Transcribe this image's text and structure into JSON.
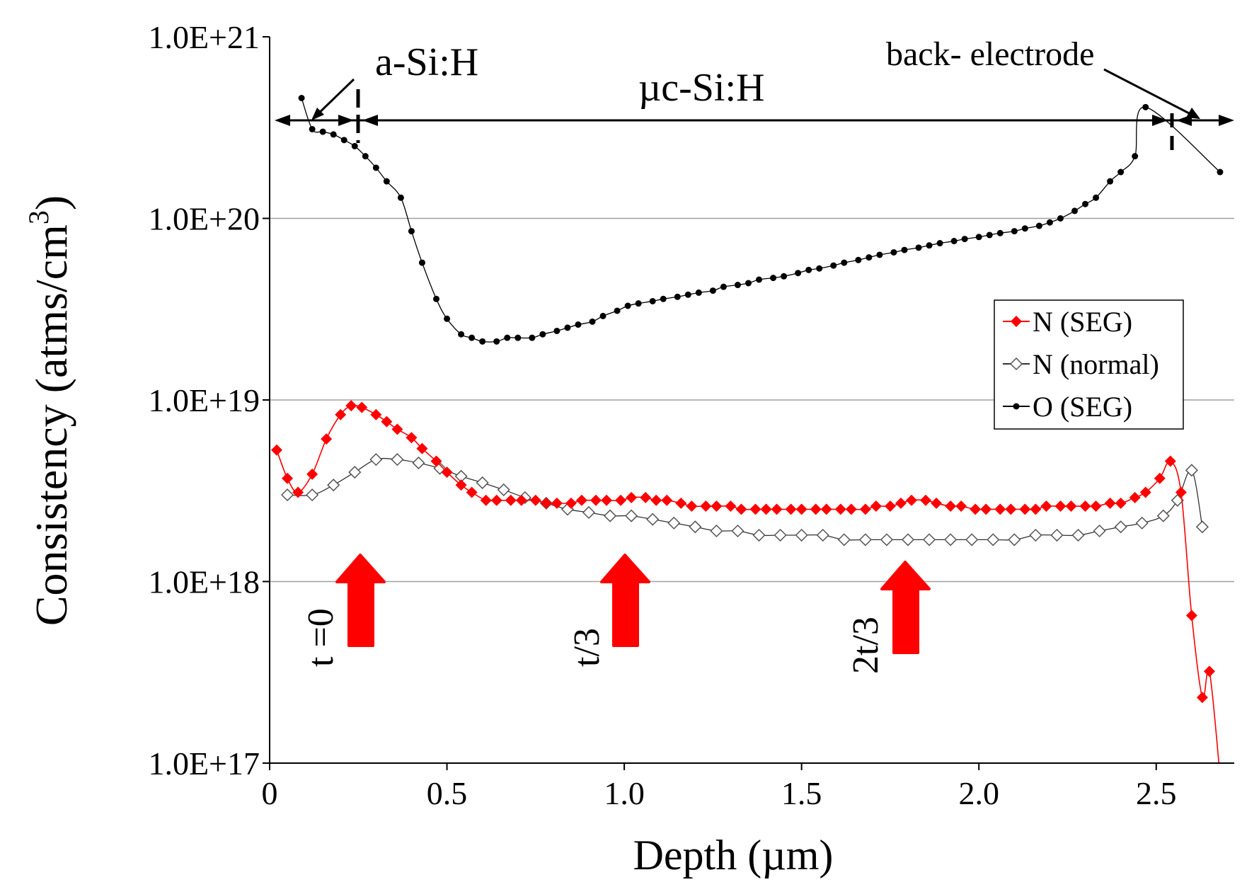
{
  "chart_data": {
    "type": "line",
    "xlabel": "Depth (µm)",
    "ylabel_main": "Consistency (atms/cm",
    "ylabel_sup": "3",
    "ylabel_close": ")",
    "xlim": [
      0,
      2.72
    ],
    "ylim": [
      1e+17,
      1e+21
    ],
    "y_scale": "log",
    "grid": "horizontal",
    "x_ticks": [
      {
        "value": 0,
        "label": "0"
      },
      {
        "value": 0.5,
        "label": "0.5"
      },
      {
        "value": 1.0,
        "label": "1.0"
      },
      {
        "value": 1.5,
        "label": "1.5"
      },
      {
        "value": 2.0,
        "label": "2.0"
      },
      {
        "value": 2.5,
        "label": "2.5"
      }
    ],
    "y_ticks": [
      {
        "value": 1e+17,
        "label": "1.0E+17"
      },
      {
        "value": 1e+18,
        "label": "1.0E+18"
      },
      {
        "value": 1e+19,
        "label": "1.0E+19"
      },
      {
        "value": 1e+20,
        "label": "1.0E+20"
      },
      {
        "value": 1e+21,
        "label": "1.0E+21"
      }
    ],
    "legend_position": "right",
    "series": [
      {
        "name": "N (SEG)",
        "color": "#ff0000",
        "marker": "filled-diamond",
        "x": [
          0.02,
          0.05,
          0.08,
          0.12,
          0.16,
          0.2,
          0.23,
          0.26,
          0.3,
          0.33,
          0.36,
          0.4,
          0.43,
          0.47,
          0.5,
          0.54,
          0.57,
          0.61,
          0.64,
          0.68,
          0.71,
          0.75,
          0.78,
          0.81,
          0.85,
          0.88,
          0.92,
          0.95,
          0.99,
          1.02,
          1.06,
          1.09,
          1.12,
          1.16,
          1.19,
          1.23,
          1.26,
          1.3,
          1.33,
          1.37,
          1.4,
          1.43,
          1.47,
          1.5,
          1.54,
          1.57,
          1.61,
          1.64,
          1.68,
          1.71,
          1.75,
          1.78,
          1.81,
          1.85,
          1.88,
          1.92,
          1.95,
          1.99,
          2.02,
          2.06,
          2.09,
          2.13,
          2.16,
          2.19,
          2.23,
          2.26,
          2.3,
          2.33,
          2.37,
          2.4,
          2.44,
          2.47,
          2.51,
          2.54,
          2.57,
          2.6,
          2.63,
          2.65,
          2.68
        ],
        "y": [
          5.3e+18,
          3.7e+18,
          3.1e+18,
          3.9e+18,
          6.1e+18,
          8.3e+18,
          9.3e+18,
          9.1e+18,
          8.3e+18,
          7.6e+18,
          6.9e+18,
          6.2e+18,
          5.4e+18,
          4.6e+18,
          4e+18,
          3.4e+18,
          3.1e+18,
          2.8e+18,
          2.8e+18,
          2.8e+18,
          2.8e+18,
          2.8e+18,
          2.7e+18,
          2.7e+18,
          2.7e+18,
          2.8e+18,
          2.8e+18,
          2.8e+18,
          2.8e+18,
          2.9e+18,
          2.9e+18,
          2.8e+18,
          2.8e+18,
          2.7e+18,
          2.6e+18,
          2.6e+18,
          2.6e+18,
          2.6e+18,
          2.5e+18,
          2.5e+18,
          2.5e+18,
          2.5e+18,
          2.5e+18,
          2.5e+18,
          2.5e+18,
          2.5e+18,
          2.5e+18,
          2.5e+18,
          2.5e+18,
          2.6e+18,
          2.6e+18,
          2.7e+18,
          2.8e+18,
          2.8e+18,
          2.7e+18,
          2.6e+18,
          2.6e+18,
          2.5e+18,
          2.5e+18,
          2.5e+18,
          2.5e+18,
          2.5e+18,
          2.5e+18,
          2.6e+18,
          2.6e+18,
          2.6e+18,
          2.6e+18,
          2.6e+18,
          2.7e+18,
          2.7e+18,
          2.9e+18,
          3.1e+18,
          3.7e+18,
          4.6e+18,
          3.1e+18,
          6.5e+17,
          2.3e+17,
          3.2e+17,
          8.5e+16
        ]
      },
      {
        "name": "N (normal)",
        "color": "#000000",
        "marker": "open-diamond",
        "x": [
          0.05,
          0.12,
          0.18,
          0.24,
          0.3,
          0.36,
          0.42,
          0.48,
          0.54,
          0.6,
          0.66,
          0.72,
          0.78,
          0.84,
          0.9,
          0.96,
          1.02,
          1.08,
          1.14,
          1.2,
          1.26,
          1.32,
          1.38,
          1.44,
          1.5,
          1.56,
          1.62,
          1.68,
          1.74,
          1.8,
          1.86,
          1.92,
          1.98,
          2.04,
          2.1,
          2.16,
          2.22,
          2.28,
          2.34,
          2.4,
          2.46,
          2.52,
          2.56,
          2.6,
          2.63
        ],
        "y": [
          3e+18,
          3e+18,
          3.4e+18,
          4e+18,
          4.7e+18,
          4.7e+18,
          4.5e+18,
          4.2e+18,
          3.8e+18,
          3.5e+18,
          3.2e+18,
          2.9e+18,
          2.7e+18,
          2.5e+18,
          2.4e+18,
          2.3e+18,
          2.3e+18,
          2.2e+18,
          2.1e+18,
          2e+18,
          1.9e+18,
          1.9e+18,
          1.8e+18,
          1.8e+18,
          1.8e+18,
          1.8e+18,
          1.7e+18,
          1.7e+18,
          1.7e+18,
          1.7e+18,
          1.7e+18,
          1.7e+18,
          1.7e+18,
          1.7e+18,
          1.7e+18,
          1.8e+18,
          1.8e+18,
          1.8e+18,
          1.9e+18,
          2e+18,
          2.1e+18,
          2.3e+18,
          2.8e+18,
          4.1e+18,
          2e+18
        ]
      },
      {
        "name": "O (SEG)",
        "color": "#000000",
        "marker": "filled-circle",
        "x": [
          0.09,
          0.12,
          0.15,
          0.18,
          0.21,
          0.24,
          0.27,
          0.3,
          0.33,
          0.37,
          0.4,
          0.43,
          0.47,
          0.5,
          0.54,
          0.57,
          0.6,
          0.64,
          0.67,
          0.7,
          0.74,
          0.77,
          0.81,
          0.84,
          0.87,
          0.91,
          0.94,
          0.98,
          1.01,
          1.04,
          1.08,
          1.11,
          1.15,
          1.18,
          1.21,
          1.25,
          1.28,
          1.32,
          1.35,
          1.38,
          1.42,
          1.45,
          1.49,
          1.52,
          1.55,
          1.59,
          1.62,
          1.66,
          1.69,
          1.72,
          1.76,
          1.79,
          1.83,
          1.86,
          1.89,
          1.93,
          1.96,
          2.0,
          2.03,
          2.06,
          2.1,
          2.13,
          2.17,
          2.2,
          2.23,
          2.27,
          2.3,
          2.33,
          2.37,
          2.4,
          2.44,
          2.47,
          2.68
        ],
        "y": [
          4.6e+20,
          3.1e+20,
          3e+20,
          2.9e+20,
          2.7e+20,
          2.5e+20,
          2.2e+20,
          1.9e+20,
          1.6e+20,
          1.3e+20,
          8.5e+19,
          5.7e+19,
          3.6e+19,
          2.8e+19,
          2.3e+19,
          2.2e+19,
          2.1e+19,
          2.1e+19,
          2.2e+19,
          2.2e+19,
          2.2e+19,
          2.3e+19,
          2.4e+19,
          2.5e+19,
          2.6e+19,
          2.7e+19,
          2.9e+19,
          3.1e+19,
          3.3e+19,
          3.4e+19,
          3.5e+19,
          3.6e+19,
          3.7e+19,
          3.8e+19,
          3.9e+19,
          4e+19,
          4.2e+19,
          4.3e+19,
          4.4e+19,
          4.6e+19,
          4.7e+19,
          4.8e+19,
          5e+19,
          5.2e+19,
          5.3e+19,
          5.5e+19,
          5.7e+19,
          5.9e+19,
          6.1e+19,
          6.3e+19,
          6.5e+19,
          6.7e+19,
          6.9e+19,
          7.1e+19,
          7.3e+19,
          7.5e+19,
          7.7e+19,
          7.9e+19,
          8.1e+19,
          8.3e+19,
          8.5e+19,
          8.8e+19,
          9.1e+19,
          9.5e+19,
          1e+20,
          1.1e+20,
          1.2e+20,
          1.3e+20,
          1.6e+20,
          1.8e+20,
          2.2e+20,
          4.1e+20,
          1.8e+20
        ]
      }
    ],
    "annotations": {
      "a_si": "a-Si:H",
      "uc_si": "µc-Si:H",
      "back_electrode": "back- electrode",
      "t0": "t =0",
      "t3": "t/3",
      "t23": "2t/3"
    },
    "arrow_color": "#ff0000"
  }
}
